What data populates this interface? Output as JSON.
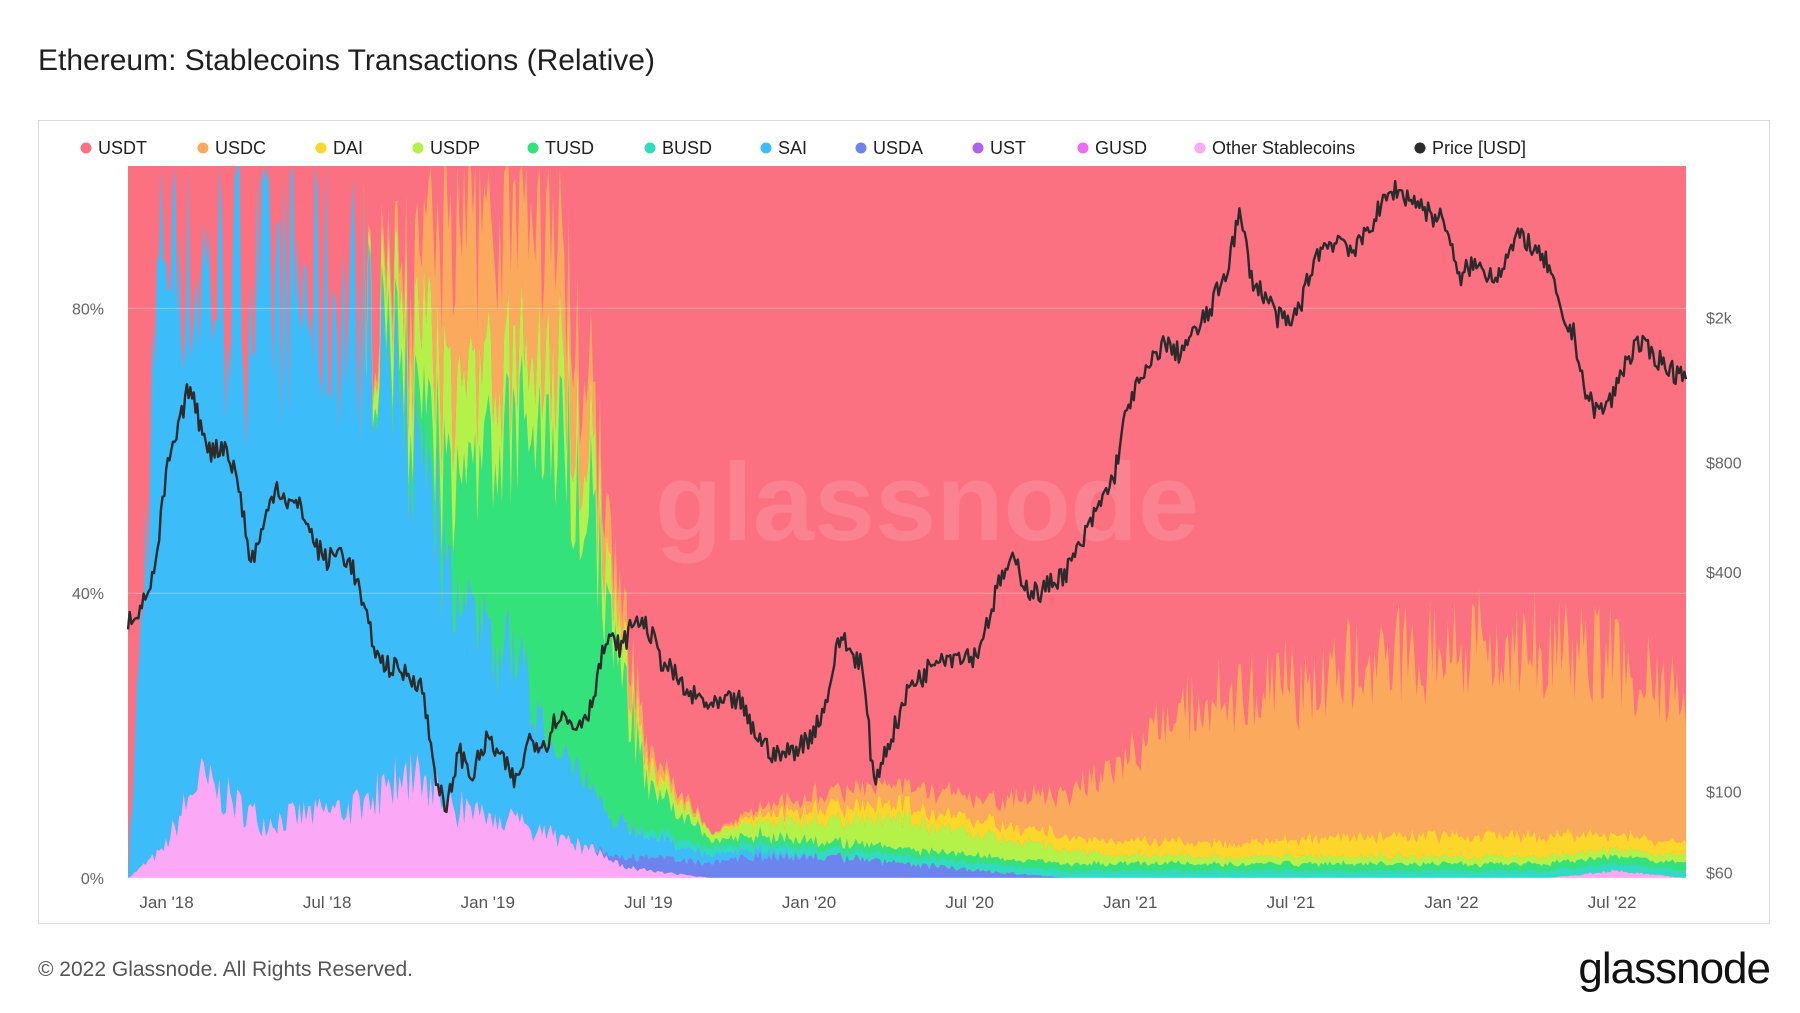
{
  "title": "Ethereum: Stablecoins Transactions (Relative)",
  "footer": "© 2022 Glassnode. All Rights Reserved.",
  "brand": "glassnode",
  "watermark": "glassnode",
  "chart_data": {
    "type": "area",
    "stacked": true,
    "x_tick_labels": [
      "Jan '18",
      "Jul '18",
      "Jan '19",
      "Jul '19",
      "Jan '20",
      "Jul '20",
      "Jan '21",
      "Jul '21",
      "Jan '22",
      "Jul '22"
    ],
    "x_range_years": [
      2017.88,
      2022.73
    ],
    "y_left_tick_labels": [
      "0%",
      "40%",
      "80%"
    ],
    "y_left_ticks": [
      0,
      40,
      80
    ],
    "y_left_range": [
      0,
      100
    ],
    "y_right_tick_labels": [
      "$60",
      "$100",
      "$400",
      "$800",
      "$2k"
    ],
    "y_right_ticks": [
      60,
      100,
      400,
      800,
      2000
    ],
    "y_right_range_log": [
      58,
      5200
    ],
    "legend_position": "top",
    "grid": true,
    "series": [
      {
        "name": "USDT",
        "color": "#fb7182"
      },
      {
        "name": "USDC",
        "color": "#fba95c"
      },
      {
        "name": "DAI",
        "color": "#fcd62a"
      },
      {
        "name": "USDP",
        "color": "#b4f24a"
      },
      {
        "name": "TUSD",
        "color": "#34e27c"
      },
      {
        "name": "BUSD",
        "color": "#2fdcc1"
      },
      {
        "name": "SAI",
        "color": "#3cbdf9"
      },
      {
        "name": "USDA",
        "color": "#6d83ee"
      },
      {
        "name": "UST",
        "color": "#b061f0"
      },
      {
        "name": "GUSD",
        "color": "#f06bf0"
      },
      {
        "name": "Other Stablecoins",
        "color": "#fba8f7"
      },
      {
        "name": "Price [USD]",
        "color": "#2b2b2b"
      }
    ],
    "share_keyframes": {
      "columns": [
        "year",
        "Other Stablecoins",
        "GUSD",
        "UST",
        "USDA",
        "SAI",
        "BUSD",
        "TUSD",
        "USDP",
        "DAI",
        "USDC"
      ],
      "rows": [
        [
          2017.88,
          0,
          0,
          0,
          0,
          0,
          0,
          0,
          0,
          0,
          0
        ],
        [
          2017.99,
          4,
          0,
          0,
          0,
          91,
          0,
          0,
          0,
          0,
          0
        ],
        [
          2018.1,
          14,
          0,
          0,
          0,
          70,
          0,
          0,
          0,
          0,
          0
        ],
        [
          2018.3,
          8,
          0,
          0,
          0,
          75,
          0,
          0,
          0,
          0,
          0
        ],
        [
          2018.6,
          10,
          0,
          0,
          0,
          70,
          0,
          0,
          0,
          0,
          0
        ],
        [
          2018.75,
          15,
          0,
          0,
          0,
          50,
          0,
          5,
          10,
          0,
          5
        ],
        [
          2018.9,
          10,
          0,
          0,
          0,
          30,
          0,
          15,
          15,
          0,
          25
        ],
        [
          2019.05,
          8,
          0,
          0,
          0,
          25,
          0,
          30,
          10,
          0,
          20
        ],
        [
          2019.2,
          6,
          0,
          0,
          0,
          15,
          0,
          45,
          10,
          0,
          18
        ],
        [
          2019.32,
          4,
          0,
          0,
          0,
          8,
          0,
          40,
          8,
          0,
          10
        ],
        [
          2019.4,
          2,
          0,
          0,
          1,
          5,
          0,
          25,
          5,
          1,
          5
        ],
        [
          2019.5,
          1,
          0,
          0,
          2,
          3,
          1,
          6,
          2,
          1,
          2
        ],
        [
          2019.7,
          0,
          0,
          0,
          2,
          1,
          1,
          1,
          1,
          0,
          0
        ],
        [
          2019.85,
          0,
          0,
          0,
          3,
          1,
          1,
          1,
          2,
          1,
          1
        ],
        [
          2020.05,
          0,
          0,
          0,
          3,
          0,
          1,
          1,
          3,
          2,
          2
        ],
        [
          2020.3,
          0,
          0,
          0,
          2,
          0,
          1,
          1,
          4,
          2,
          3
        ],
        [
          2020.55,
          0,
          0,
          0,
          1,
          0,
          1,
          1,
          3,
          2,
          3
        ],
        [
          2020.8,
          0,
          0,
          0,
          0,
          0,
          1,
          1,
          2,
          2,
          6
        ],
        [
          2021.0,
          0,
          0,
          0,
          0,
          0,
          1,
          1,
          1,
          2,
          12
        ],
        [
          2021.2,
          0,
          0,
          0,
          0,
          0,
          1,
          1,
          1,
          2,
          20
        ],
        [
          2021.4,
          0,
          0,
          0,
          0,
          0,
          1,
          1,
          1,
          2,
          21
        ],
        [
          2021.7,
          0,
          0,
          0,
          0,
          0,
          1,
          1,
          1,
          3,
          24
        ],
        [
          2021.9,
          0,
          0,
          0,
          0,
          0,
          1,
          1,
          1,
          3,
          26
        ],
        [
          2022.1,
          0,
          0,
          0,
          0,
          0,
          1,
          1,
          1,
          3,
          28
        ],
        [
          2022.3,
          0,
          0,
          0,
          0,
          0,
          1,
          1,
          1,
          3,
          27
        ],
        [
          2022.5,
          1,
          0,
          0,
          0,
          0,
          1,
          1,
          1,
          2,
          25
        ],
        [
          2022.73,
          0,
          0,
          0,
          0,
          0,
          1,
          1,
          1,
          2,
          20
        ]
      ]
    },
    "price_keyframes": [
      [
        2017.88,
        295
      ],
      [
        2017.93,
        330
      ],
      [
        2017.97,
        420
      ],
      [
        2018.0,
        750
      ],
      [
        2018.04,
        1000
      ],
      [
        2018.07,
        1300
      ],
      [
        2018.1,
        1050
      ],
      [
        2018.14,
        850
      ],
      [
        2018.18,
        900
      ],
      [
        2018.22,
        720
      ],
      [
        2018.26,
        420
      ],
      [
        2018.3,
        520
      ],
      [
        2018.34,
        700
      ],
      [
        2018.38,
        620
      ],
      [
        2018.42,
        600
      ],
      [
        2018.46,
        480
      ],
      [
        2018.5,
        430
      ],
      [
        2018.54,
        460
      ],
      [
        2018.58,
        410
      ],
      [
        2018.62,
        300
      ],
      [
        2018.66,
        230
      ],
      [
        2018.7,
        220
      ],
      [
        2018.75,
        210
      ],
      [
        2018.79,
        200
      ],
      [
        2018.83,
        120
      ],
      [
        2018.87,
        85
      ],
      [
        2018.91,
        130
      ],
      [
        2018.95,
        110
      ],
      [
        2019.0,
        140
      ],
      [
        2019.05,
        120
      ],
      [
        2019.09,
        105
      ],
      [
        2019.13,
        140
      ],
      [
        2019.18,
        135
      ],
      [
        2019.22,
        165
      ],
      [
        2019.27,
        150
      ],
      [
        2019.32,
        170
      ],
      [
        2019.37,
        260
      ],
      [
        2019.42,
        250
      ],
      [
        2019.46,
        300
      ],
      [
        2019.5,
        280
      ],
      [
        2019.54,
        230
      ],
      [
        2019.58,
        210
      ],
      [
        2019.62,
        185
      ],
      [
        2019.66,
        180
      ],
      [
        2019.7,
        170
      ],
      [
        2019.74,
        175
      ],
      [
        2019.78,
        180
      ],
      [
        2019.82,
        150
      ],
      [
        2019.86,
        135
      ],
      [
        2019.9,
        125
      ],
      [
        2019.95,
        130
      ],
      [
        2020.0,
        140
      ],
      [
        2020.05,
        170
      ],
      [
        2020.1,
        270
      ],
      [
        2020.13,
        240
      ],
      [
        2020.16,
        230
      ],
      [
        2020.2,
        105
      ],
      [
        2020.24,
        130
      ],
      [
        2020.28,
        160
      ],
      [
        2020.32,
        200
      ],
      [
        2020.36,
        210
      ],
      [
        2020.4,
        240
      ],
      [
        2020.44,
        235
      ],
      [
        2020.48,
        240
      ],
      [
        2020.52,
        235
      ],
      [
        2020.56,
        300
      ],
      [
        2020.6,
        390
      ],
      [
        2020.64,
        430
      ],
      [
        2020.68,
        360
      ],
      [
        2020.72,
        350
      ],
      [
        2020.76,
        380
      ],
      [
        2020.8,
        400
      ],
      [
        2020.85,
        480
      ],
      [
        2020.9,
        600
      ],
      [
        2020.95,
        730
      ],
      [
        2021.0,
        1200
      ],
      [
        2021.05,
        1400
      ],
      [
        2021.1,
        1700
      ],
      [
        2021.15,
        1600
      ],
      [
        2021.2,
        1800
      ],
      [
        2021.25,
        2100
      ],
      [
        2021.3,
        2700
      ],
      [
        2021.34,
        3800
      ],
      [
        2021.38,
        2500
      ],
      [
        2021.42,
        2300
      ],
      [
        2021.46,
        2000
      ],
      [
        2021.5,
        1900
      ],
      [
        2021.54,
        2300
      ],
      [
        2021.58,
        3000
      ],
      [
        2021.62,
        3200
      ],
      [
        2021.66,
        3300
      ],
      [
        2021.7,
        3000
      ],
      [
        2021.74,
        3500
      ],
      [
        2021.78,
        4000
      ],
      [
        2021.82,
        4500
      ],
      [
        2021.86,
        4300
      ],
      [
        2021.9,
        4100
      ],
      [
        2021.94,
        3800
      ],
      [
        2021.98,
        3700
      ],
      [
        2022.02,
        2500
      ],
      [
        2022.06,
        2800
      ],
      [
        2022.1,
        2700
      ],
      [
        2022.14,
        2600
      ],
      [
        2022.18,
        3000
      ],
      [
        2022.22,
        3400
      ],
      [
        2022.26,
        3000
      ],
      [
        2022.3,
        2800
      ],
      [
        2022.34,
        2000
      ],
      [
        2022.38,
        1800
      ],
      [
        2022.42,
        1200
      ],
      [
        2022.46,
        1100
      ],
      [
        2022.5,
        1200
      ],
      [
        2022.54,
        1500
      ],
      [
        2022.58,
        1700
      ],
      [
        2022.62,
        1600
      ],
      [
        2022.66,
        1500
      ],
      [
        2022.7,
        1400
      ],
      [
        2022.73,
        1450
      ]
    ]
  }
}
